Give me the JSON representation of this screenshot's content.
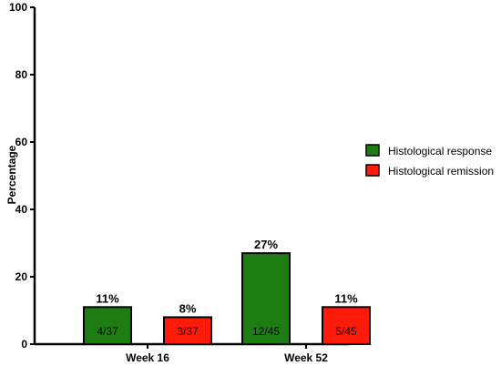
{
  "chart_data": {
    "type": "bar",
    "ylabel": "Percentage",
    "xlabel": "",
    "ylim": [
      0,
      100
    ],
    "yticks": [
      0,
      20,
      40,
      60,
      80,
      100
    ],
    "categories": [
      "Week 16",
      "Week 52"
    ],
    "series": [
      {
        "name": "Histological response",
        "color": "#1e7d12",
        "values": [
          11,
          27
        ],
        "labels": [
          "11%",
          "27%"
        ],
        "counts": [
          "4/37",
          "12/45"
        ]
      },
      {
        "name": "Histological remission",
        "color": "#ff1a0a",
        "values": [
          8,
          11
        ],
        "labels": [
          "8%",
          "11%"
        ],
        "counts": [
          "3/37",
          "5/45"
        ]
      }
    ],
    "grid": false,
    "legend_position": "right"
  }
}
